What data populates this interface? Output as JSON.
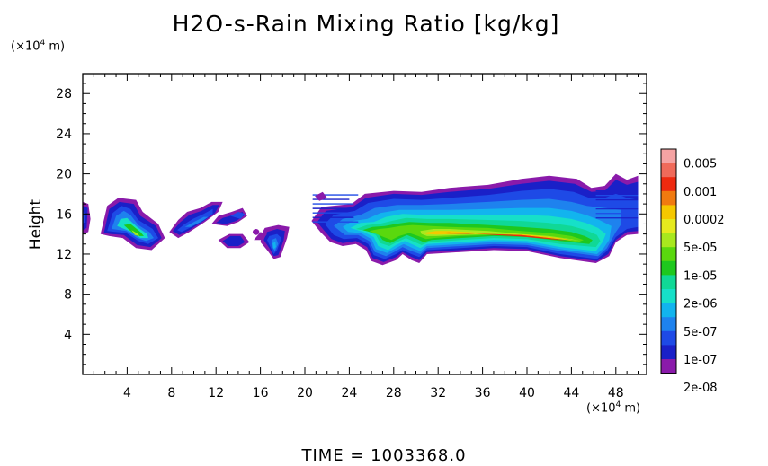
{
  "title": "H2O-s-Rain Mixing Ratio [kg/kg]",
  "y_unit": {
    "base": "(×10",
    "exp": "4",
    "tail": " m)"
  },
  "x_unit": {
    "base": "(×10",
    "exp": "4",
    "tail": " m)"
  },
  "ylabel": "Height",
  "time_label": "TIME  =  1003368.0",
  "chart_data": {
    "type": "heatmap",
    "title": "H2O-s-Rain Mixing Ratio [kg/kg]",
    "ylabel": "Height",
    "xlabel": "",
    "xlim": [
      0,
      50
    ],
    "ylim": [
      0,
      30
    ],
    "xticks": [
      4,
      8,
      12,
      16,
      20,
      24,
      28,
      32,
      36,
      40,
      44,
      48
    ],
    "yticks": [
      4,
      8,
      12,
      16,
      20,
      24,
      28
    ],
    "colorbar": {
      "labels": [
        "0.005",
        "0.001",
        "0.0002",
        "5e-05",
        "1e-05",
        "2e-06",
        "5e-07",
        "1e-07",
        "2e-08"
      ],
      "colors": [
        "#f5a3a3",
        "#f06a5a",
        "#ee2a10",
        "#f07a10",
        "#f5c800",
        "#e6ea1e",
        "#a8e81e",
        "#5ad80e",
        "#1ec81e",
        "#10d896",
        "#16e0c8",
        "#12b4ee",
        "#1e82ee",
        "#1e4ae6",
        "#1a20c8",
        "#8a1aaa"
      ]
    }
  }
}
